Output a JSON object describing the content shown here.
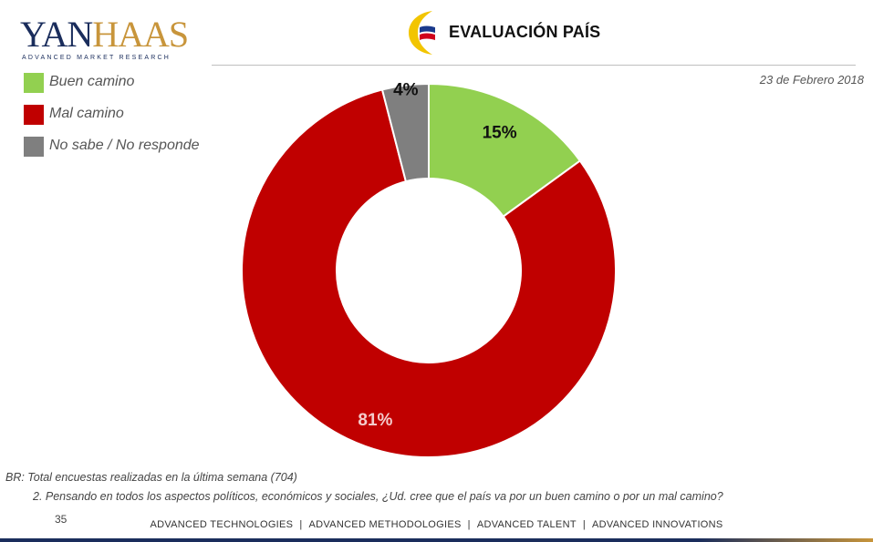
{
  "brand": {
    "logo_prefix": "YAN",
    "logo_suffix": "HAAS",
    "tagline": "ADVANCED MARKET RESEARCH"
  },
  "header": {
    "title": "EVALUACIÓN PAÍS",
    "date": "23 de Febrero 2018"
  },
  "colors": {
    "buen_camino": "#92d050",
    "mal_camino": "#c00000",
    "no_sabe": "#7f7f7f",
    "navy": "#1a2d5c",
    "gold": "#c8953b"
  },
  "chart_data": {
    "type": "pie",
    "donut": true,
    "title": "",
    "legend_position": "top-left",
    "slices": [
      {
        "label": "Buen camino",
        "value": 15,
        "display": "15%",
        "color": "#92d050",
        "label_color": "#111111"
      },
      {
        "label": "Mal camino",
        "value": 81,
        "display": "81%",
        "color": "#c00000",
        "label_color": "#f4cccc"
      },
      {
        "label": "No sabe /  No responde",
        "value": 4,
        "display": "4%",
        "color": "#7f7f7f",
        "label_color": "#111111"
      }
    ]
  },
  "footnotes": {
    "base": "BR: Total encuestas realizadas en la última semana (704)",
    "question": "2. Pensando en todos los aspectos políticos, económicos y sociales, ¿Ud. cree que el país va por un buen camino o por un mal camino?",
    "page_number": "35"
  },
  "footer": {
    "items": [
      "ADVANCED TECHNOLOGIES",
      "ADVANCED METHODOLOGIES",
      "ADVANCED TALENT",
      "ADVANCED INNOVATIONS"
    ],
    "separator": "|"
  }
}
